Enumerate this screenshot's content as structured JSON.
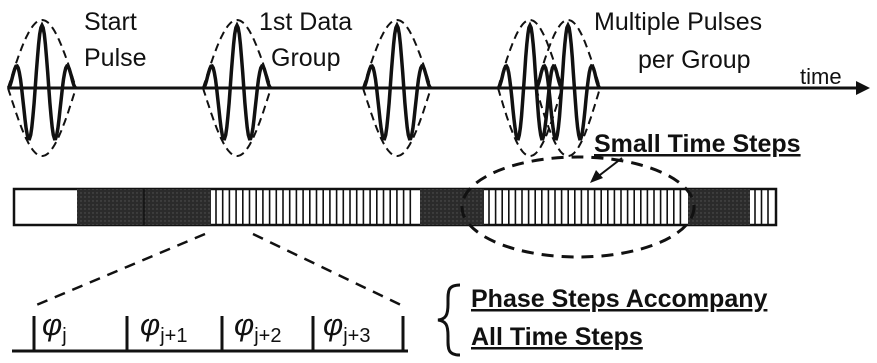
{
  "labels": {
    "start_pulse_line1": "Start",
    "start_pulse_line2": "Pulse",
    "data_group_line1": "1st Data",
    "data_group_line2": "Group",
    "multiple_line1": "Multiple Pulses",
    "multiple_line2": "per Group",
    "time_axis": "time",
    "small_time_steps": "Small Time Steps",
    "phase_steps_line1": "Phase Steps Accompany",
    "phase_steps_line2": "All Time Steps"
  },
  "phase_cells": [
    {
      "symbol": "φ",
      "subscript": "j"
    },
    {
      "symbol": "φ",
      "subscript": "j+1"
    },
    {
      "symbol": "φ",
      "subscript": "j+2"
    },
    {
      "symbol": "φ",
      "subscript": "j+3"
    }
  ],
  "colors": {
    "ink": "#111111",
    "dark_fill": "#2b2b2b",
    "background": "#ffffff"
  }
}
